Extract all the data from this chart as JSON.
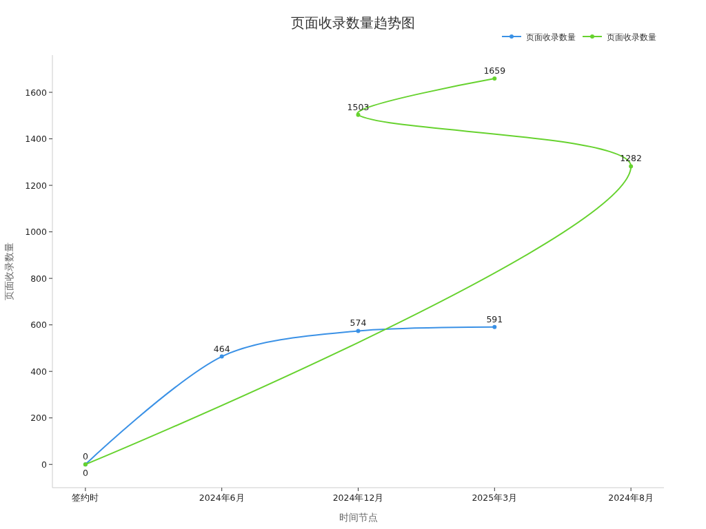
{
  "chart_data": {
    "type": "line",
    "title": "页面收录数量趋势图",
    "xlabel": "时间节点",
    "ylabel": "页面收录数量",
    "categories": [
      "签约时",
      "2024年6月",
      "2024年12月",
      "2025年3月",
      "2024年8月"
    ],
    "series": [
      {
        "name": "页面收录数量",
        "color": "#3a91e6",
        "values": [
          0,
          464,
          574,
          591,
          null
        ]
      },
      {
        "name": "页面收录数量",
        "color": "#66d22e",
        "x": [
          "签约时",
          "2024年8月",
          "2024年12月",
          "2025年3月"
        ],
        "values": [
          0,
          1282,
          1503,
          1659
        ]
      }
    ],
    "ylim": [
      -100,
      1760
    ],
    "yticks": [
      0,
      200,
      400,
      600,
      800,
      1000,
      1200,
      1400,
      1600
    ],
    "legend": "top right",
    "marker": "circle",
    "data_labels": true
  }
}
